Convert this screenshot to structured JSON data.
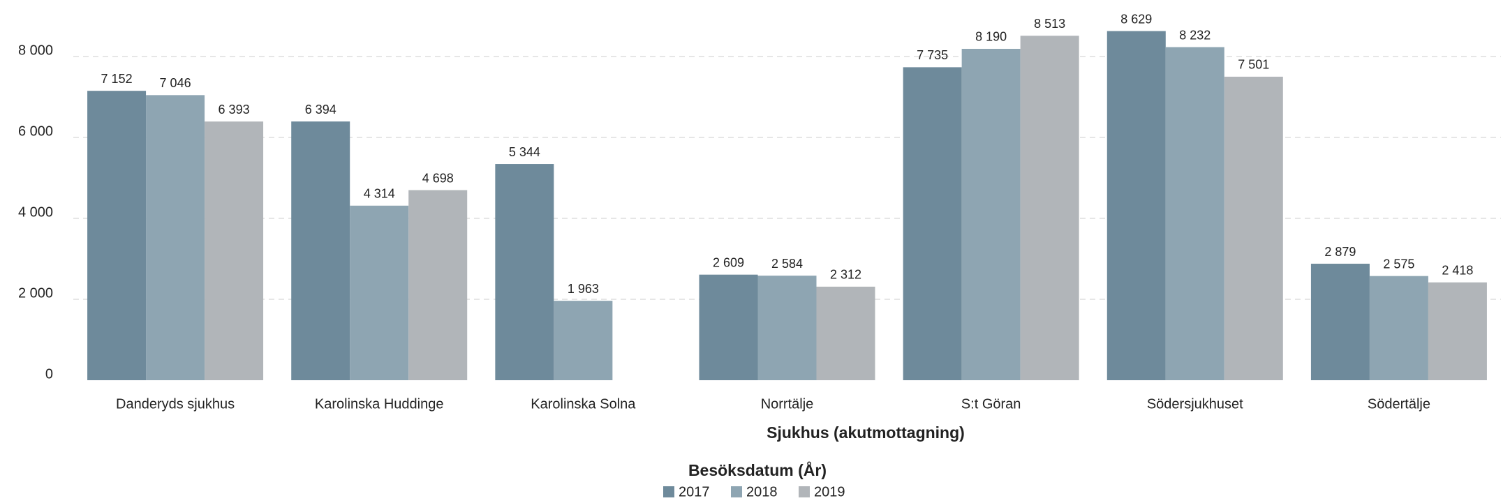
{
  "chart_data": {
    "type": "bar",
    "x_label": "Sjukhus (akutmottagning)",
    "legend_title": "Besöksdatum (År)",
    "categories": [
      "Danderyds sjukhus",
      "Karolinska Huddinge",
      "Karolinska Solna",
      "Norrtälje",
      "S:t Göran",
      "Södersjukhuset",
      "Södertälje"
    ],
    "series": [
      {
        "name": "2017",
        "color": "#6e8a9b",
        "values": [
          7152,
          6394,
          5344,
          2609,
          7735,
          8629,
          2879
        ],
        "value_labels": [
          "7 152",
          "6 394",
          "5 344",
          "2 609",
          "7 735",
          "8 629",
          "2 879"
        ]
      },
      {
        "name": "2018",
        "color": "#8ea5b2",
        "values": [
          7046,
          4314,
          1963,
          2584,
          8190,
          8232,
          2575
        ],
        "value_labels": [
          "7 046",
          "4 314",
          "1 963",
          "2 584",
          "8 190",
          "8 232",
          "2 575"
        ]
      },
      {
        "name": "2019",
        "color": "#b1b5b9",
        "values": [
          6393,
          4698,
          null,
          2312,
          8513,
          7501,
          2418
        ],
        "value_labels": [
          "6 393",
          "4 698",
          null,
          "2 312",
          "8 513",
          "7 501",
          "2 418"
        ]
      }
    ],
    "ylim": [
      0,
      9000
    ],
    "yticks": [
      0,
      {
        "value": 2000,
        "label": "2 000"
      },
      {
        "value": 4000,
        "label": "4 000"
      },
      {
        "value": 6000,
        "label": "6 000"
      },
      {
        "value": 8000,
        "label": "8 000"
      }
    ],
    "grid": true
  }
}
